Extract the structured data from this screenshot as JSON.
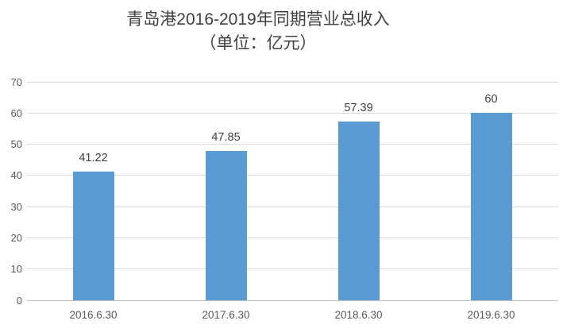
{
  "chart_data": {
    "type": "bar",
    "title_line1": "青岛港2016-2019年同期营业总收入",
    "title_line2": "（单位：亿元）",
    "categories": [
      "2016.6.30",
      "2017.6.30",
      "2018.6.30",
      "2019.6.30"
    ],
    "values": [
      41.22,
      47.85,
      57.39,
      60
    ],
    "labels": [
      "41.22",
      "47.85",
      "57.39",
      "60"
    ],
    "ylabel": "",
    "xlabel": "",
    "ylim": [
      0,
      70
    ],
    "yticks": [
      0,
      10,
      20,
      30,
      40,
      50,
      60,
      70
    ],
    "grid": true,
    "legend": false,
    "colors": {
      "bar": "#5B9BD5",
      "gridline": "#D9D9D9",
      "axis_line": "#BFBFBF",
      "tick_text": "#595959",
      "title_text": "#404040",
      "data_label": "#3F3F3F"
    }
  }
}
